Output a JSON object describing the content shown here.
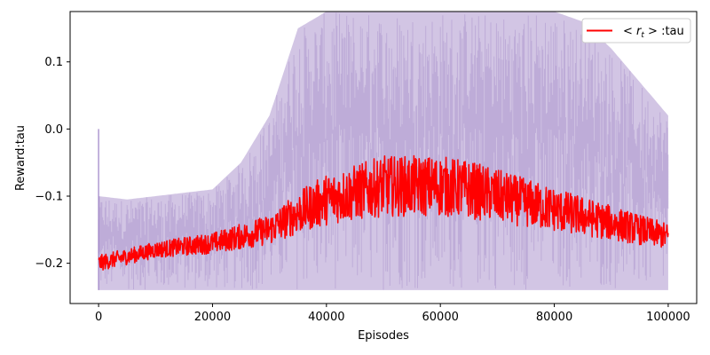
{
  "chart_data": {
    "type": "line",
    "title": "",
    "xlabel": "Episodes",
    "ylabel": "Reward:tau",
    "xlim": [
      -5000,
      105000
    ],
    "ylim": [
      -0.26,
      0.175
    ],
    "x_ticks": [
      0,
      20000,
      40000,
      60000,
      80000,
      100000
    ],
    "x_tick_labels": [
      "0",
      "20000",
      "40000",
      "60000",
      "80000",
      "100000"
    ],
    "y_ticks": [
      -0.2,
      -0.1,
      0.0,
      0.1
    ],
    "y_tick_labels": [
      "−0.2",
      "−0.1",
      "0.0",
      "0.1"
    ],
    "grid": false,
    "legend": {
      "position": "top-right",
      "entries": [
        "< r_t > :tau"
      ]
    },
    "series": [
      {
        "name": "< r_t > :tau",
        "color": "#ff0000",
        "x": [
          0,
          5000,
          10000,
          15000,
          20000,
          25000,
          30000,
          35000,
          40000,
          45000,
          50000,
          55000,
          60000,
          65000,
          70000,
          75000,
          80000,
          85000,
          90000,
          95000,
          100000
        ],
        "y": [
          -0.2,
          -0.19,
          -0.18,
          -0.175,
          -0.17,
          -0.16,
          -0.15,
          -0.125,
          -0.105,
          -0.095,
          -0.085,
          -0.085,
          -0.085,
          -0.09,
          -0.1,
          -0.11,
          -0.12,
          -0.13,
          -0.14,
          -0.15,
          -0.16
        ]
      }
    ],
    "band": {
      "color": "#9b7fc4",
      "description_lower": "per-episode min",
      "x": [
        0,
        5000,
        10000,
        15000,
        20000,
        25000,
        30000,
        35000,
        40000,
        45000,
        50000,
        55000,
        60000,
        65000,
        70000,
        75000,
        80000,
        85000,
        90000,
        95000,
        100000
      ],
      "lower": [
        -0.24,
        -0.24,
        -0.24,
        -0.24,
        -0.24,
        -0.24,
        -0.24,
        -0.24,
        -0.24,
        -0.24,
        -0.24,
        -0.24,
        -0.24,
        -0.24,
        -0.24,
        -0.24,
        -0.24,
        -0.24,
        -0.24,
        -0.24,
        -0.24
      ],
      "upper": [
        -0.1,
        -0.105,
        -0.1,
        -0.095,
        -0.09,
        -0.05,
        0.02,
        0.15,
        0.175,
        0.175,
        0.175,
        0.175,
        0.175,
        0.175,
        0.175,
        0.175,
        0.175,
        0.16,
        0.12,
        0.07,
        0.02
      ]
    }
  }
}
